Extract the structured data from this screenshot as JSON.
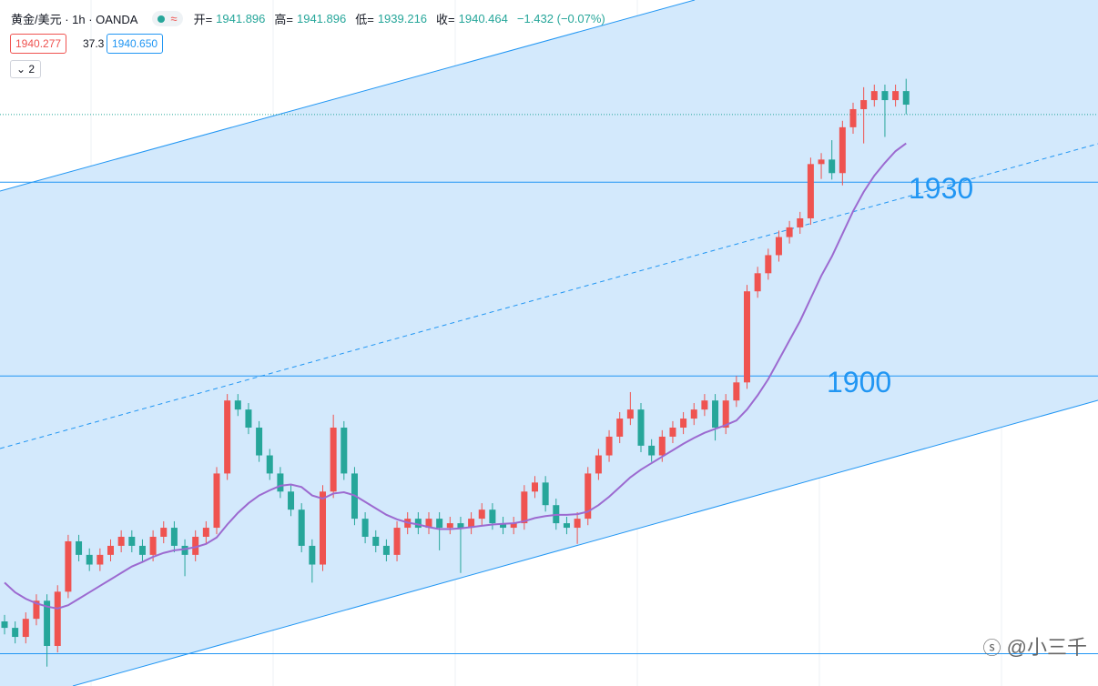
{
  "header": {
    "symbol": "黄金/美元 · 1h · OANDA",
    "open_label": "开=",
    "open": 1941.896,
    "high_label": "高=",
    "high": 1941.896,
    "low_label": "低=",
    "low": 1939.216,
    "close_label": "收=",
    "close": 1940.464,
    "change": "−1.432 (−0.07%)",
    "bid": 1940.277,
    "spread": 37.3,
    "ask": 1940.65,
    "ask_label": "1940.650",
    "indicators": 2,
    "badge": "≈"
  },
  "chart_data": {
    "type": "candlestick",
    "ylim": [
      1852,
      1958.2
    ],
    "up_color": "#ef5350",
    "down_color": "#26a69a",
    "open": [
      1862.0,
      1861.0,
      1859.6,
      1862.4,
      1865.2,
      1858.2,
      1866.6,
      1874.4,
      1872.3,
      1870.8,
      1872.3,
      1873.7,
      1875.1,
      1873.7,
      1872.3,
      1875.1,
      1876.5,
      1873.7,
      1872.3,
      1875.1,
      1876.5,
      1884.9,
      1896.2,
      1894.8,
      1892.0,
      1887.7,
      1884.9,
      1882.1,
      1879.3,
      1873.7,
      1870.8,
      1882.1,
      1892.0,
      1884.9,
      1877.9,
      1875.1,
      1873.7,
      1872.3,
      1876.5,
      1877.9,
      1876.5,
      1877.9,
      1876.5,
      1877.2,
      1876.5,
      1877.9,
      1879.3,
      1877.2,
      1876.5,
      1877.2,
      1882.1,
      1883.5,
      1880.0,
      1877.2,
      1876.5,
      1877.9,
      1884.9,
      1887.7,
      1890.6,
      1893.4,
      1894.8,
      1889.2,
      1887.7,
      1890.6,
      1892.0,
      1893.4,
      1894.8,
      1896.2,
      1892.0,
      1896.2,
      1899.0,
      1913.1,
      1915.9,
      1918.7,
      1921.5,
      1923.0,
      1924.4,
      1932.8,
      1933.5,
      1931.4,
      1938.5,
      1941.3,
      1942.7,
      1944.1,
      1942.7,
      1944.1
    ],
    "high": [
      1863.0,
      1862.0,
      1863.4,
      1866.2,
      1866.2,
      1867.6,
      1875.4,
      1875.4,
      1873.3,
      1873.3,
      1874.7,
      1876.1,
      1876.1,
      1874.7,
      1876.1,
      1877.5,
      1877.5,
      1874.7,
      1876.1,
      1877.5,
      1885.9,
      1897.2,
      1897.2,
      1895.8,
      1893.0,
      1888.7,
      1885.9,
      1883.1,
      1880.3,
      1874.7,
      1883.1,
      1894.0,
      1893.0,
      1885.9,
      1878.9,
      1876.1,
      1874.7,
      1877.5,
      1878.9,
      1878.9,
      1878.9,
      1878.9,
      1878.2,
      1878.2,
      1878.9,
      1880.3,
      1880.3,
      1878.2,
      1878.2,
      1883.1,
      1884.5,
      1884.5,
      1881.0,
      1878.2,
      1878.9,
      1885.9,
      1888.7,
      1891.6,
      1894.4,
      1897.5,
      1895.8,
      1890.2,
      1891.6,
      1893.0,
      1894.4,
      1895.8,
      1897.2,
      1897.2,
      1897.2,
      1900.0,
      1914.1,
      1916.9,
      1919.7,
      1922.5,
      1924.0,
      1925.4,
      1933.8,
      1934.5,
      1936.5,
      1939.5,
      1942.3,
      1944.7,
      1945.1,
      1945.1,
      1945.1,
      1946.0
    ],
    "low": [
      1860.0,
      1858.6,
      1858.6,
      1861.4,
      1855.0,
      1857.2,
      1865.6,
      1871.3,
      1869.8,
      1869.8,
      1871.3,
      1872.7,
      1872.7,
      1871.3,
      1871.3,
      1874.1,
      1872.7,
      1869.0,
      1871.3,
      1874.1,
      1875.5,
      1883.9,
      1893.8,
      1891.0,
      1886.7,
      1883.9,
      1881.1,
      1878.3,
      1872.7,
      1868.0,
      1869.8,
      1881.1,
      1883.9,
      1876.9,
      1874.1,
      1872.7,
      1871.3,
      1871.3,
      1875.5,
      1875.5,
      1875.5,
      1873.0,
      1875.5,
      1869.5,
      1875.5,
      1876.9,
      1876.2,
      1875.5,
      1875.5,
      1876.2,
      1881.1,
      1879.0,
      1876.2,
      1875.5,
      1874.0,
      1876.9,
      1883.9,
      1886.7,
      1889.6,
      1892.4,
      1888.2,
      1886.7,
      1886.7,
      1889.6,
      1891.0,
      1892.4,
      1893.8,
      1890.0,
      1891.0,
      1895.2,
      1898.0,
      1912.1,
      1914.9,
      1917.7,
      1920.5,
      1922.0,
      1923.4,
      1930.5,
      1930.4,
      1929.5,
      1937.5,
      1936.0,
      1941.7,
      1937.0,
      1941.7,
      1940.5
    ],
    "close": [
      1861.0,
      1859.6,
      1862.4,
      1865.2,
      1858.2,
      1866.6,
      1874.4,
      1872.3,
      1870.8,
      1872.3,
      1873.7,
      1875.1,
      1873.7,
      1872.3,
      1875.1,
      1876.5,
      1873.7,
      1872.3,
      1875.1,
      1876.5,
      1884.9,
      1896.2,
      1894.8,
      1892.0,
      1887.7,
      1884.9,
      1882.1,
      1879.3,
      1873.7,
      1870.8,
      1882.1,
      1892.0,
      1884.9,
      1877.9,
      1875.1,
      1873.7,
      1872.3,
      1876.5,
      1877.9,
      1876.5,
      1877.9,
      1876.5,
      1877.2,
      1876.5,
      1877.9,
      1879.3,
      1877.2,
      1876.5,
      1877.2,
      1882.1,
      1883.5,
      1880.0,
      1877.2,
      1876.5,
      1877.9,
      1884.9,
      1887.7,
      1890.6,
      1893.4,
      1894.8,
      1889.2,
      1887.7,
      1890.6,
      1892.0,
      1893.4,
      1894.8,
      1896.2,
      1892.0,
      1896.2,
      1899.0,
      1913.1,
      1915.9,
      1918.7,
      1921.5,
      1923.0,
      1924.4,
      1932.8,
      1933.5,
      1931.4,
      1938.5,
      1941.3,
      1942.7,
      1944.1,
      1942.7,
      1944.1,
      1942.0
    ],
    "ma": {
      "color": "#9c6ad0",
      "values": [
        1868,
        1866.5,
        1865.5,
        1864.8,
        1864.3,
        1864.0,
        1864.5,
        1865.5,
        1866.5,
        1867.5,
        1868.5,
        1869.5,
        1870.5,
        1871.2,
        1872.0,
        1872.6,
        1873.0,
        1873.2,
        1873.5,
        1874.0,
        1875.0,
        1877.0,
        1878.8,
        1880.3,
        1881.5,
        1882.3,
        1883.0,
        1883.2,
        1882.8,
        1881.5,
        1881.0,
        1881.8,
        1882.0,
        1881.5,
        1880.5,
        1879.5,
        1878.5,
        1877.8,
        1877.3,
        1877.0,
        1876.6,
        1876.3,
        1876.3,
        1876.4,
        1876.6,
        1876.8,
        1877.0,
        1877.1,
        1877.2,
        1877.5,
        1878.0,
        1878.3,
        1878.5,
        1878.5,
        1878.6,
        1879.0,
        1880.0,
        1881.3,
        1882.8,
        1884.3,
        1885.5,
        1886.5,
        1887.5,
        1888.5,
        1889.5,
        1890.4,
        1891.2,
        1891.8,
        1892.4,
        1893.1,
        1894.8,
        1897.0,
        1899.5,
        1902.5,
        1905.5,
        1908.5,
        1912.0,
        1915.5,
        1918.5,
        1922.0,
        1925.5,
        1928.5,
        1931.0,
        1933.0,
        1934.8,
        1936.0
      ]
    },
    "annotated_levels": [
      1930,
      1900
    ],
    "levels": [
      1857
    ],
    "level_color": "#2196f3"
  },
  "watermark": "@小三千"
}
